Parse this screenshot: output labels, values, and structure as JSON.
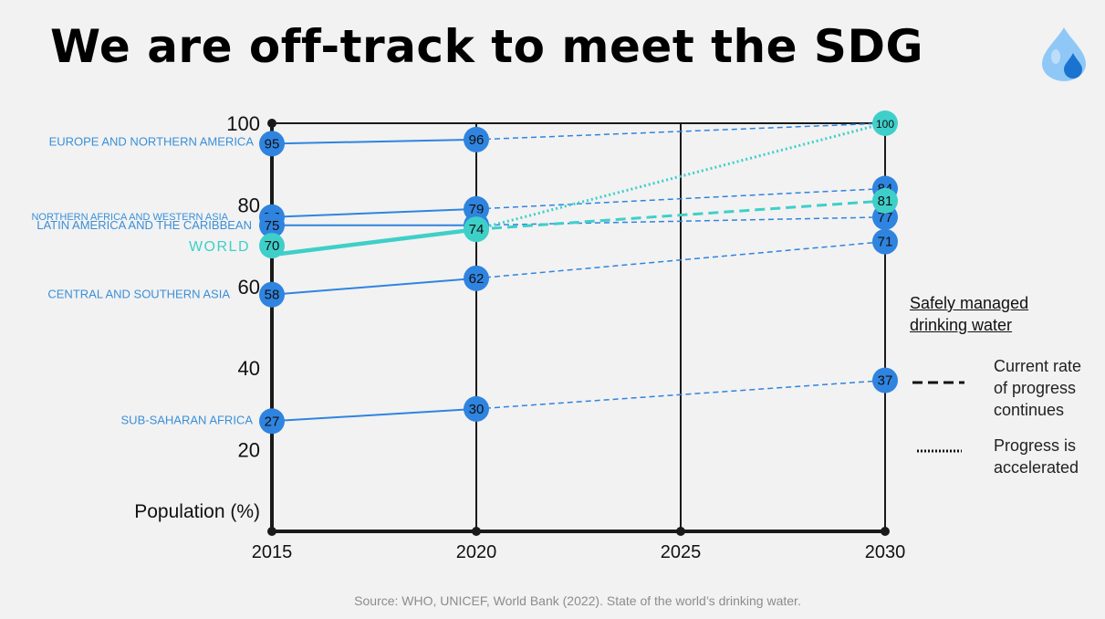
{
  "page": {
    "title": "We are off-track to meet the SDG",
    "source": "Source: WHO, UNICEF, World Bank (2022). State of the world’s drinking water.",
    "logo_icon": "water-drop-icon"
  },
  "colors": {
    "region": "#2f84e0",
    "region_label": "#3a8fd8",
    "world": "#3fcfc9",
    "axis": "#1a1a1a"
  },
  "legend": {
    "title_line1": "Safely managed",
    "title_line2": "drinking water",
    "items": [
      {
        "style": "dashed",
        "lines": [
          "Current rate",
          "of progress",
          "continues"
        ]
      },
      {
        "style": "dotted",
        "lines": [
          "Progress is",
          "accelerated"
        ]
      }
    ]
  },
  "chart_data": {
    "type": "line",
    "title": "We are off-track to meet the SDG",
    "ylabel": "Population (%)",
    "x": [
      2015,
      2020,
      2025,
      2030
    ],
    "y_ticks": [
      20,
      40,
      60,
      80,
      100
    ],
    "ylim": [
      0,
      100
    ],
    "series": [
      {
        "name": "EUROPE AND NORTHERN AMERICA",
        "kind": "region",
        "values": {
          "2015": 95,
          "2020": 96,
          "2030": 100
        }
      },
      {
        "name": "NORTHERN AFRICA AND WESTERN ASIA",
        "kind": "region",
        "values": {
          "2015": 77,
          "2020": 79,
          "2030": 84
        }
      },
      {
        "name": "LATIN AMERICA AND THE CARIBBEAN",
        "kind": "region",
        "values": {
          "2015": 75,
          "2020": 75,
          "2030": 77
        }
      },
      {
        "name": "WORLD",
        "kind": "world",
        "values": {
          "2015": 70,
          "2020": 74,
          "2030": 81
        },
        "accelerated_2030": 100
      },
      {
        "name": "CENTRAL AND SOUTHERN ASIA",
        "kind": "region",
        "values": {
          "2015": 58,
          "2020": 62,
          "2030": 71
        }
      },
      {
        "name": "SUB-SAHARAN AFRICA",
        "kind": "region",
        "values": {
          "2015": 27,
          "2020": 30,
          "2030": 37
        }
      }
    ]
  }
}
